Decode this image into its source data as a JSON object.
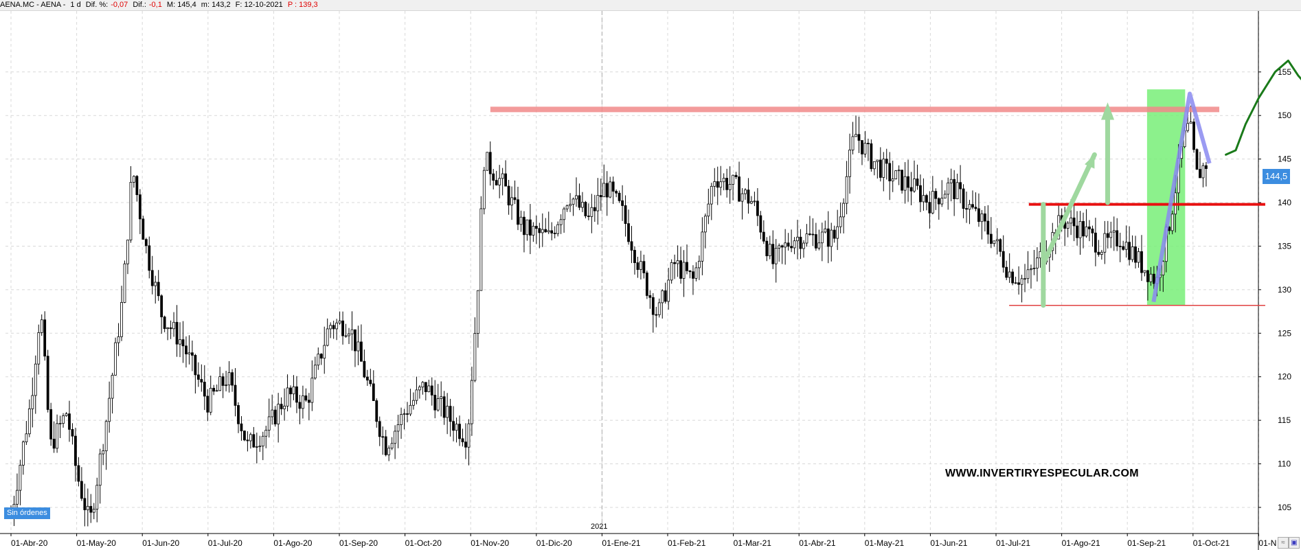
{
  "header": {
    "symbol": "AENA.MC - AENA -",
    "period": "1 d",
    "dif_pct_label": "Dif. %:",
    "dif_pct_value": "-0,07",
    "dif_label": "Dif.:",
    "dif_value": "-0,1",
    "max_label": "M: 145,4",
    "min_label": "m: 143,2",
    "date_label": "F: 12-10-2021",
    "price_label": "P : 139,3"
  },
  "status_badge": "Sin órdenes",
  "last_price": "144,5",
  "watermark": "WWW.INVERTIRYESPECULAR.COM",
  "year_marker": "2021",
  "colors": {
    "candle": "#000000",
    "resistance": "#f28a8a",
    "support_strong": "#e81010",
    "support_thin": "#e04040",
    "highlight": "#78ee78",
    "arrow_green": "#9fd89f",
    "arrow_blue": "#8a8af0",
    "projection": "#1a7a1a",
    "badge": "#3c8de0",
    "grid": "#d8d8d8"
  },
  "chart_data": {
    "type": "candlestick",
    "title": "",
    "xlabel": "",
    "ylabel": "",
    "ylim": [
      102,
      162
    ],
    "y_ticks": [
      105,
      110,
      115,
      120,
      125,
      130,
      135,
      140,
      145,
      150,
      155
    ],
    "x_tick_labels": [
      "01-Abr-20",
      "01-May-20",
      "01-Jun-20",
      "01-Jul-20",
      "01-Ago-20",
      "01-Sep-20",
      "01-Oct-20",
      "01-Nov-20",
      "01-Dic-20",
      "01-Ene-21",
      "01-Feb-21",
      "01-Mar-21",
      "01-Abr-21",
      "01-May-21",
      "01-Jun-21",
      "01-Jul-21",
      "01-Ago-21",
      "01-Sep-21",
      "01-Oct-21",
      "01-N"
    ],
    "x_range_months": [
      0,
      20
    ],
    "grid": true,
    "price_waypoints": [
      [
        0.0,
        104
      ],
      [
        0.3,
        117
      ],
      [
        0.45,
        128
      ],
      [
        0.6,
        112
      ],
      [
        0.85,
        116
      ],
      [
        1.0,
        109
      ],
      [
        1.2,
        103
      ],
      [
        1.45,
        115
      ],
      [
        1.7,
        129
      ],
      [
        1.85,
        144
      ],
      [
        2.05,
        135
      ],
      [
        2.3,
        127
      ],
      [
        2.6,
        124
      ],
      [
        3.0,
        117
      ],
      [
        3.3,
        120
      ],
      [
        3.6,
        112
      ],
      [
        3.9,
        114
      ],
      [
        4.2,
        118
      ],
      [
        4.5,
        117
      ],
      [
        4.85,
        126
      ],
      [
        5.15,
        126
      ],
      [
        5.4,
        120
      ],
      [
        5.7,
        112
      ],
      [
        6.0,
        116
      ],
      [
        6.3,
        119
      ],
      [
        6.7,
        115
      ],
      [
        6.95,
        113
      ],
      [
        7.1,
        129
      ],
      [
        7.2,
        145
      ],
      [
        7.5,
        142
      ],
      [
        7.8,
        137
      ],
      [
        8.2,
        136
      ],
      [
        8.5,
        141
      ],
      [
        8.8,
        138
      ],
      [
        9.05,
        142
      ],
      [
        9.3,
        139
      ],
      [
        9.6,
        132
      ],
      [
        9.85,
        127
      ],
      [
        10.1,
        133
      ],
      [
        10.4,
        131
      ],
      [
        10.7,
        143
      ],
      [
        11.0,
        142
      ],
      [
        11.3,
        140
      ],
      [
        11.6,
        133
      ],
      [
        11.9,
        136
      ],
      [
        12.2,
        136
      ],
      [
        12.55,
        136
      ],
      [
        12.85,
        148
      ],
      [
        13.1,
        145
      ],
      [
        13.4,
        143
      ],
      [
        13.7,
        142
      ],
      [
        14.0,
        140
      ],
      [
        14.3,
        142
      ],
      [
        14.65,
        139
      ],
      [
        14.95,
        136
      ],
      [
        15.2,
        132
      ],
      [
        15.45,
        131
      ],
      [
        15.7,
        134
      ],
      [
        16.0,
        138
      ],
      [
        16.3,
        137
      ],
      [
        16.6,
        135
      ],
      [
        16.9,
        136
      ],
      [
        17.2,
        133
      ],
      [
        17.45,
        131
      ],
      [
        17.65,
        138
      ],
      [
        17.85,
        147
      ],
      [
        17.95,
        149
      ],
      [
        18.05,
        143
      ],
      [
        18.2,
        144.5
      ]
    ],
    "annotations": [
      {
        "kind": "resistance",
        "y": 150.7,
        "x_from": 7.3,
        "x_to": 18.4
      },
      {
        "kind": "support",
        "y": 139.8,
        "x_from": 15.5,
        "x_to": 19.1
      },
      {
        "kind": "support-low",
        "y": 128.2,
        "x_from": 15.2,
        "x_to": 19.1
      },
      {
        "kind": "highlight-zone",
        "y_from": 128.2,
        "y_to": 153,
        "x_from": 17.3,
        "x_to": 17.88
      }
    ]
  }
}
